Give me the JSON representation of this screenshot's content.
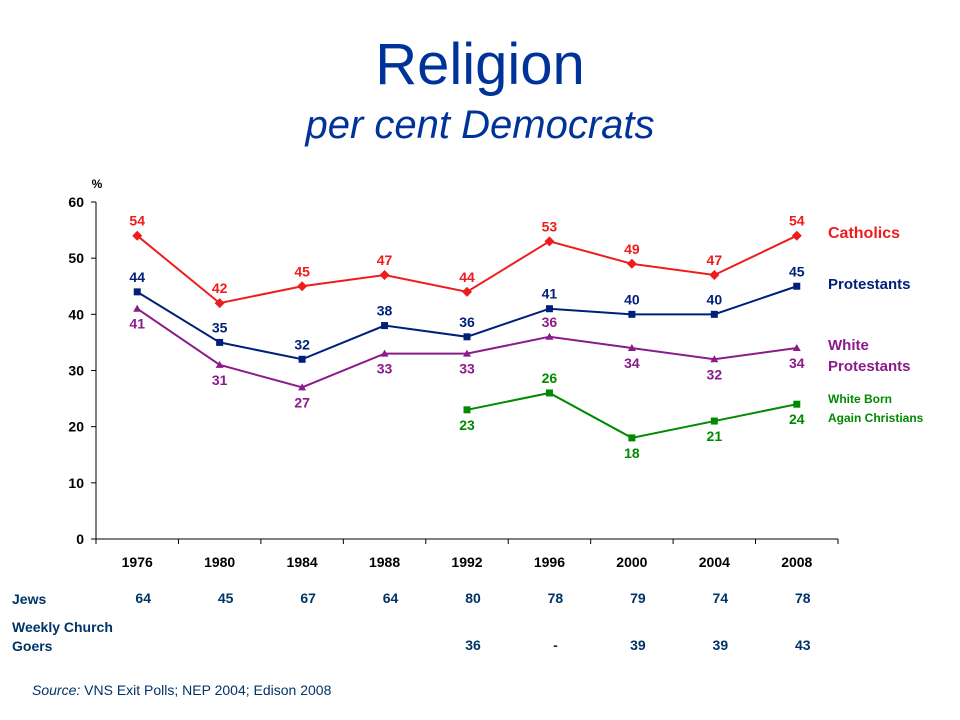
{
  "title": "Religion",
  "subtitle": "per cent Democrats",
  "chart_data": {
    "type": "line",
    "ylabel": "%",
    "xlabel": "",
    "ylim": [
      0,
      60
    ],
    "yticks": [
      0,
      10,
      20,
      30,
      40,
      50,
      60
    ],
    "categories": [
      "1976",
      "1980",
      "1984",
      "1988",
      "1992",
      "1996",
      "2000",
      "2004",
      "2008"
    ],
    "grid": false,
    "legend": "right",
    "series": [
      {
        "name": "Catholics",
        "color": "#ee1c1c",
        "marker": "diamond",
        "values": [
          54,
          42,
          45,
          47,
          44,
          53,
          49,
          47,
          54
        ]
      },
      {
        "name": "Protestants",
        "color": "#001f7a",
        "marker": "square",
        "values": [
          44,
          35,
          32,
          38,
          36,
          41,
          40,
          40,
          45
        ]
      },
      {
        "name": "White Protestants",
        "color": "#8b1a8b",
        "marker": "triangle",
        "values": [
          41,
          31,
          27,
          33,
          33,
          36,
          34,
          32,
          34
        ]
      },
      {
        "name": "White Born Again Christians",
        "color": "#008a00",
        "marker": "square",
        "values": [
          null,
          null,
          null,
          null,
          23,
          26,
          18,
          21,
          24
        ]
      }
    ]
  },
  "table": {
    "jews_label": "Jews",
    "jews": [
      "64",
      "45",
      "67",
      "64",
      "80",
      "78",
      "79",
      "74",
      "78"
    ],
    "church_label_1": "Weekly Church",
    "church_label_2": "Goers",
    "church": [
      "",
      "",
      "",
      "",
      "36",
      "-",
      "39",
      "39",
      "43"
    ]
  },
  "source": {
    "label": "Source:",
    "text": " VNS Exit Polls; NEP 2004; Edison 2008"
  }
}
